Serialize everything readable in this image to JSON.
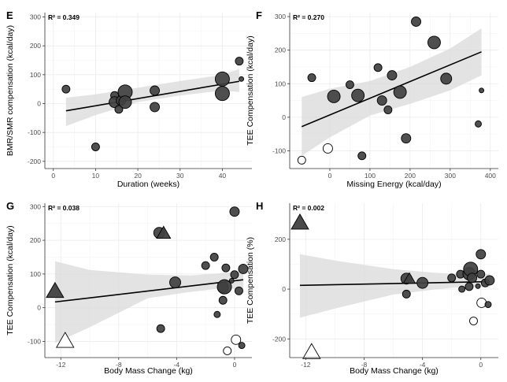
{
  "chart_data": [
    {
      "panel": "E",
      "type": "scatter",
      "r2_label": "R² = 0.349",
      "xlabel": "Duration (weeks)",
      "ylabel": "BMR/SMR compensation (kcal/day)",
      "xlim": [
        -2,
        47
      ],
      "ylim": [
        -225,
        315
      ],
      "xticks": [
        0,
        10,
        20,
        30,
        40
      ],
      "yticks": [
        -200,
        -100,
        0,
        100,
        200,
        300
      ],
      "tick_labels_x": [
        "0",
        "10",
        "20",
        "30",
        "40"
      ],
      "tick_labels_y": [
        "-200",
        "-100",
        "0",
        "100",
        "200",
        "300"
      ],
      "fit": {
        "x0": 3,
        "y0": -25,
        "x1": 44,
        "y1": 77
      },
      "band": {
        "upper": [
          [
            3,
            20
          ],
          [
            10,
            32
          ],
          [
            20,
            55
          ],
          [
            30,
            78
          ],
          [
            40,
            100
          ],
          [
            44,
            120
          ]
        ],
        "lower": [
          [
            3,
            -78
          ],
          [
            10,
            -40
          ],
          [
            20,
            5
          ],
          [
            30,
            28
          ],
          [
            40,
            45
          ],
          [
            44,
            40
          ]
        ]
      },
      "points": [
        {
          "x": 3,
          "y": 50,
          "s": 5,
          "shape": "circle",
          "fill": "#404040"
        },
        {
          "x": 10,
          "y": -150,
          "s": 5,
          "shape": "circle",
          "fill": "#404040"
        },
        {
          "x": 14.5,
          "y": 28,
          "s": 5,
          "shape": "circle",
          "fill": "#404040"
        },
        {
          "x": 14.5,
          "y": 5,
          "s": 7,
          "shape": "circle",
          "fill": "#404040"
        },
        {
          "x": 15.5,
          "y": -20,
          "s": 5,
          "shape": "circle",
          "fill": "#404040"
        },
        {
          "x": 16,
          "y": 10,
          "s": 6,
          "shape": "circle",
          "fill": "#404040"
        },
        {
          "x": 17,
          "y": 40,
          "s": 9,
          "shape": "circle",
          "fill": "#404040"
        },
        {
          "x": 17,
          "y": 5,
          "s": 8,
          "shape": "circle",
          "fill": "#404040"
        },
        {
          "x": 24,
          "y": 45,
          "s": 6,
          "shape": "circle",
          "fill": "#404040"
        },
        {
          "x": 24,
          "y": -12,
          "s": 6,
          "shape": "circle",
          "fill": "#404040"
        },
        {
          "x": 40,
          "y": 85,
          "s": 9,
          "shape": "circle",
          "fill": "#404040"
        },
        {
          "x": 40,
          "y": 35,
          "s": 9,
          "shape": "circle",
          "fill": "#404040"
        },
        {
          "x": 44,
          "y": 147,
          "s": 5,
          "shape": "circle",
          "fill": "#404040"
        },
        {
          "x": 44.5,
          "y": 85,
          "s": 3,
          "shape": "circle",
          "fill": "#404040"
        }
      ]
    },
    {
      "panel": "F",
      "type": "scatter",
      "r2_label": "R² = 0.270",
      "xlabel": "Missing Energy (kcal/day)",
      "ylabel": "TEE Compensation (kcal/day)",
      "xlim": [
        -100,
        420
      ],
      "ylim": [
        -153,
        312
      ],
      "xticks": [
        0,
        100,
        200,
        300,
        400
      ],
      "yticks": [
        -100,
        0,
        100,
        200,
        300
      ],
      "tick_labels_x": [
        "0",
        "100",
        "200",
        "300",
        "400"
      ],
      "tick_labels_y": [
        "-100",
        "0",
        "100",
        "200",
        "300"
      ],
      "fit": {
        "x0": -70,
        "y0": -28,
        "x1": 378,
        "y1": 195
      },
      "band": {
        "upper": [
          [
            -70,
            60
          ],
          [
            0,
            85
          ],
          [
            100,
            108
          ],
          [
            200,
            150
          ],
          [
            300,
            205
          ],
          [
            378,
            265
          ]
        ],
        "lower": [
          [
            -70,
            -115
          ],
          [
            0,
            -60
          ],
          [
            100,
            5
          ],
          [
            200,
            40
          ],
          [
            300,
            80
          ],
          [
            378,
            125
          ]
        ]
      },
      "points": [
        {
          "x": -70,
          "y": -128,
          "s": 5,
          "shape": "circle",
          "fill": "#ffffff"
        },
        {
          "x": -5,
          "y": -93,
          "s": 6,
          "shape": "circle",
          "fill": "#ffffff"
        },
        {
          "x": -45,
          "y": 118,
          "s": 5,
          "shape": "circle",
          "fill": "#404040"
        },
        {
          "x": 10,
          "y": 62,
          "s": 8,
          "shape": "circle",
          "fill": "#404040"
        },
        {
          "x": 50,
          "y": 97,
          "s": 5,
          "shape": "circle",
          "fill": "#404040"
        },
        {
          "x": 70,
          "y": 65,
          "s": 8,
          "shape": "circle",
          "fill": "#404040"
        },
        {
          "x": 80,
          "y": -115,
          "s": 5,
          "shape": "circle",
          "fill": "#404040"
        },
        {
          "x": 120,
          "y": 148,
          "s": 5,
          "shape": "circle",
          "fill": "#404040"
        },
        {
          "x": 130,
          "y": 50,
          "s": 6,
          "shape": "circle",
          "fill": "#404040"
        },
        {
          "x": 145,
          "y": 22,
          "s": 5,
          "shape": "circle",
          "fill": "#404040"
        },
        {
          "x": 155,
          "y": 125,
          "s": 6,
          "shape": "circle",
          "fill": "#404040"
        },
        {
          "x": 175,
          "y": 75,
          "s": 8,
          "shape": "circle",
          "fill": "#404040"
        },
        {
          "x": 190,
          "y": -63,
          "s": 6,
          "shape": "circle",
          "fill": "#404040"
        },
        {
          "x": 215,
          "y": 285,
          "s": 6,
          "shape": "circle",
          "fill": "#404040"
        },
        {
          "x": 260,
          "y": 223,
          "s": 8,
          "shape": "circle",
          "fill": "#404040"
        },
        {
          "x": 290,
          "y": 115,
          "s": 7,
          "shape": "circle",
          "fill": "#404040"
        },
        {
          "x": 370,
          "y": -20,
          "s": 4,
          "shape": "circle",
          "fill": "#404040"
        },
        {
          "x": 378,
          "y": 80,
          "s": 3,
          "shape": "circle",
          "fill": "#404040"
        }
      ]
    },
    {
      "panel": "G",
      "type": "scatter",
      "r2_label": "R² = 0.038",
      "xlabel": "Body Mass Change (kg)",
      "ylabel": "TEE Compensation (kcal/day)",
      "xlim": [
        -13.1,
        1.2
      ],
      "ylim": [
        -148,
        310
      ],
      "xticks": [
        -12,
        -8,
        -4,
        0
      ],
      "yticks": [
        -100,
        0,
        100,
        200,
        300
      ],
      "tick_labels_x": [
        "-12",
        "-8",
        "-4",
        "0"
      ],
      "tick_labels_y": [
        "-100",
        "0",
        "100",
        "200",
        "300"
      ],
      "fit": {
        "x0": -12.4,
        "y0": 17,
        "x1": 0.6,
        "y1": 83
      },
      "band": {
        "upper": [
          [
            -12.4,
            138
          ],
          [
            -10,
            112
          ],
          [
            -6,
            98
          ],
          [
            -3,
            96
          ],
          [
            -1,
            102
          ],
          [
            0.6,
            108
          ]
        ],
        "lower": [
          [
            -12.4,
            -105
          ],
          [
            -10,
            -58
          ],
          [
            -6,
            28
          ],
          [
            -3,
            47
          ],
          [
            -1,
            57
          ],
          [
            0.6,
            55
          ]
        ]
      },
      "points": [
        {
          "x": -12.4,
          "y": 48,
          "s": 10,
          "shape": "triangle",
          "fill": "#404040"
        },
        {
          "x": -11.7,
          "y": -100,
          "s": 10,
          "shape": "triangle",
          "fill": "#ffffff"
        },
        {
          "x": -5.2,
          "y": 222,
          "s": 7,
          "shape": "circle",
          "fill": "#404040"
        },
        {
          "x": -4.9,
          "y": 220,
          "s": 8,
          "shape": "triangle",
          "fill": "#404040"
        },
        {
          "x": -5.1,
          "y": -62,
          "s": 5,
          "shape": "circle",
          "fill": "#404040"
        },
        {
          "x": -4.1,
          "y": 75,
          "s": 7,
          "shape": "circle",
          "fill": "#404040"
        },
        {
          "x": -2.0,
          "y": 125,
          "s": 5,
          "shape": "circle",
          "fill": "#404040"
        },
        {
          "x": -1.4,
          "y": 150,
          "s": 5,
          "shape": "circle",
          "fill": "#404040"
        },
        {
          "x": -1.2,
          "y": -20,
          "s": 4,
          "shape": "circle",
          "fill": "#404040"
        },
        {
          "x": -0.8,
          "y": 60,
          "s": 7,
          "shape": "circle",
          "fill": "#404040"
        },
        {
          "x": -0.7,
          "y": 62,
          "s": 9,
          "shape": "circle",
          "fill": "#404040"
        },
        {
          "x": -0.8,
          "y": 22,
          "s": 5,
          "shape": "circle",
          "fill": "#404040"
        },
        {
          "x": -0.6,
          "y": 118,
          "s": 5,
          "shape": "circle",
          "fill": "#404040"
        },
        {
          "x": -0.5,
          "y": -128,
          "s": 5,
          "shape": "circle",
          "fill": "#ffffff"
        },
        {
          "x": -0.2,
          "y": 80,
          "s": 3,
          "shape": "circle",
          "fill": "#404040"
        },
        {
          "x": 0,
          "y": 285,
          "s": 6,
          "shape": "circle",
          "fill": "#404040"
        },
        {
          "x": 0,
          "y": 98,
          "s": 5,
          "shape": "circle",
          "fill": "#404040"
        },
        {
          "x": 0.1,
          "y": -95,
          "s": 6,
          "shape": "circle",
          "fill": "#ffffff"
        },
        {
          "x": 0.3,
          "y": 50,
          "s": 5,
          "shape": "circle",
          "fill": "#404040"
        },
        {
          "x": 0.5,
          "y": -112,
          "s": 4,
          "shape": "circle",
          "fill": "#404040"
        },
        {
          "x": 0.6,
          "y": 115,
          "s": 6,
          "shape": "circle",
          "fill": "#404040"
        }
      ]
    },
    {
      "panel": "H",
      "type": "scatter",
      "r2_label": "R² = 0.002",
      "xlabel": "Body Mass Change (kg)",
      "ylabel": "TEE Compensation (%)",
      "xlim": [
        -13.1,
        1.2
      ],
      "ylim": [
        -275,
        345
      ],
      "xticks": [
        -12,
        -8,
        -4,
        0
      ],
      "yticks": [
        -200,
        0,
        200
      ],
      "tick_labels_x": [
        "-12",
        "-8",
        "-4",
        "0"
      ],
      "tick_labels_y": [
        "-200",
        "0",
        "200"
      ],
      "fit": {
        "x0": -12.4,
        "y0": 15,
        "x1": 0.6,
        "y1": 30
      },
      "band": {
        "upper": [
          [
            -12.4,
            140
          ],
          [
            -10,
            115
          ],
          [
            -6,
            80
          ],
          [
            -3,
            65
          ],
          [
            -1,
            60
          ],
          [
            0.6,
            62
          ]
        ],
        "lower": [
          [
            -12.4,
            -115
          ],
          [
            -10,
            -78
          ],
          [
            -6,
            -22
          ],
          [
            -3,
            0
          ],
          [
            -1,
            10
          ],
          [
            0.6,
            5
          ]
        ]
      },
      "points": [
        {
          "x": -12.4,
          "y": 265,
          "s": 10,
          "shape": "triangle",
          "fill": "#404040"
        },
        {
          "x": -11.6,
          "y": -255,
          "s": 10,
          "shape": "triangle",
          "fill": "#ffffff"
        },
        {
          "x": -5.1,
          "y": 42,
          "s": 7,
          "shape": "circle",
          "fill": "#404040"
        },
        {
          "x": -4.9,
          "y": 40,
          "s": 7,
          "shape": "triangle",
          "fill": "#404040"
        },
        {
          "x": -5.1,
          "y": -20,
          "s": 5,
          "shape": "circle",
          "fill": "#404040"
        },
        {
          "x": -4.0,
          "y": 25,
          "s": 7,
          "shape": "circle",
          "fill": "#404040"
        },
        {
          "x": -2.0,
          "y": 45,
          "s": 5,
          "shape": "circle",
          "fill": "#404040"
        },
        {
          "x": -1.4,
          "y": 60,
          "s": 5,
          "shape": "circle",
          "fill": "#404040"
        },
        {
          "x": -1.3,
          "y": 0,
          "s": 4,
          "shape": "circle",
          "fill": "#404040"
        },
        {
          "x": -0.8,
          "y": 62,
          "s": 8,
          "shape": "circle",
          "fill": "#404040"
        },
        {
          "x": -0.7,
          "y": 80,
          "s": 9,
          "shape": "circle",
          "fill": "#404040"
        },
        {
          "x": -0.8,
          "y": 10,
          "s": 5,
          "shape": "circle",
          "fill": "#404040"
        },
        {
          "x": -0.6,
          "y": 45,
          "s": 6,
          "shape": "circle",
          "fill": "#404040"
        },
        {
          "x": -0.5,
          "y": -128,
          "s": 5,
          "shape": "circle",
          "fill": "#ffffff"
        },
        {
          "x": -0.2,
          "y": 12,
          "s": 3,
          "shape": "circle",
          "fill": "#404040"
        },
        {
          "x": 0,
          "y": 140,
          "s": 6,
          "shape": "circle",
          "fill": "#404040"
        },
        {
          "x": 0,
          "y": 60,
          "s": 5,
          "shape": "circle",
          "fill": "#404040"
        },
        {
          "x": 0.05,
          "y": -55,
          "s": 6,
          "shape": "circle",
          "fill": "#ffffff"
        },
        {
          "x": 0.3,
          "y": 25,
          "s": 5,
          "shape": "circle",
          "fill": "#404040"
        },
        {
          "x": 0.5,
          "y": -62,
          "s": 4,
          "shape": "circle",
          "fill": "#404040"
        },
        {
          "x": 0.6,
          "y": 35,
          "s": 6,
          "shape": "circle",
          "fill": "#404040"
        }
      ]
    }
  ]
}
